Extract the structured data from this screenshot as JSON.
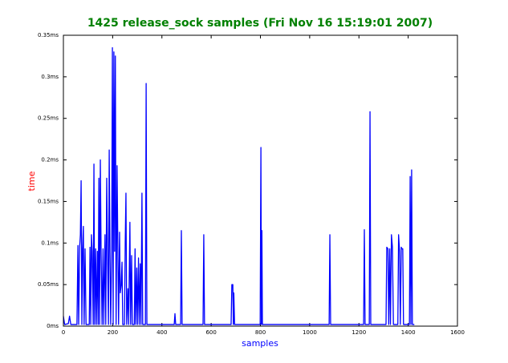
{
  "chart_data": {
    "type": "line",
    "title": "1425 release_sock samples (Fri Nov 16 15:19:01 2007)",
    "x_label": "samples",
    "y_label": "time",
    "xlim": [
      0,
      1600
    ],
    "ylim": [
      0,
      0.35
    ],
    "xticks": [
      0,
      200,
      400,
      600,
      800,
      1000,
      1200,
      1400,
      1600
    ],
    "yticks": [
      {
        "value": 0,
        "label": "0ms"
      },
      {
        "value": 0.05,
        "label": "0.05ms"
      },
      {
        "value": 0.1,
        "label": "0.1ms"
      },
      {
        "value": 0.15,
        "label": "0.15ms"
      },
      {
        "value": 0.2,
        "label": "0.2ms"
      },
      {
        "value": 0.25,
        "label": "0.25ms"
      },
      {
        "value": 0.3,
        "label": "0.3ms"
      },
      {
        "value": 0.35,
        "label": "0.35ms"
      }
    ],
    "grid": false,
    "series": [
      {
        "color": "#0000ff",
        "x": [
          0,
          5,
          20,
          25,
          30,
          55,
          59,
          62,
          66,
          69,
          72,
          75,
          78,
          81,
          84,
          88,
          92,
          105,
          108,
          111,
          114,
          117,
          121,
          124,
          127,
          131,
          134,
          138,
          141,
          144,
          147,
          150,
          153,
          157,
          161,
          164,
          169,
          172,
          176,
          179,
          183,
          186,
          189,
          192,
          196,
          199,
          202,
          205,
          208,
          211,
          214,
          218,
          221,
          224,
          228,
          231,
          235,
          238,
          241,
          248,
          251,
          254,
          257,
          262,
          265,
          270,
          273,
          277,
          280,
          288,
          291,
          294,
          298,
          301,
          305,
          308,
          312,
          315,
          319,
          322,
          333,
          336,
          339,
          450,
          453,
          456,
          476,
          479,
          482,
          567,
          570,
          573,
          681,
          684,
          688,
          690,
          692,
          695,
          799,
          802,
          804,
          806,
          808,
          1079,
          1082,
          1085,
          1219,
          1222,
          1225,
          1242,
          1245,
          1248,
          1310,
          1313,
          1318,
          1321,
          1325,
          1328,
          1332,
          1336,
          1340,
          1358,
          1361,
          1365,
          1368,
          1372,
          1375,
          1378,
          1381,
          1405,
          1408,
          1411,
          1414,
          1417,
          1425
        ],
        "values": [
          0.012,
          0.002,
          0.003,
          0.012,
          0.002,
          0.002,
          0.097,
          0.002,
          0.095,
          0.11,
          0.175,
          0.002,
          0.093,
          0.12,
          0.002,
          0.093,
          0.002,
          0.002,
          0.095,
          0.002,
          0.11,
          0.09,
          0.002,
          0.195,
          0.002,
          0.093,
          0.002,
          0.09,
          0.002,
          0.178,
          0.002,
          0.2,
          0.093,
          0.002,
          0.093,
          0.002,
          0.11,
          0.002,
          0.178,
          0.093,
          0.002,
          0.212,
          0.09,
          0.002,
          0.09,
          0.335,
          0.002,
          0.33,
          0.09,
          0.325,
          0.002,
          0.193,
          0.095,
          0.002,
          0.113,
          0.04,
          0.05,
          0.077,
          0.002,
          0.002,
          0.1,
          0.16,
          0.002,
          0.045,
          0.002,
          0.125,
          0.002,
          0.085,
          0.002,
          0.002,
          0.093,
          0.002,
          0.07,
          0.002,
          0.082,
          0.002,
          0.075,
          0.002,
          0.16,
          0.002,
          0.002,
          0.292,
          0.002,
          0.002,
          0.015,
          0.002,
          0.002,
          0.115,
          0.002,
          0.002,
          0.11,
          0.002,
          0.002,
          0.05,
          0.05,
          0.002,
          0.04,
          0.002,
          0.002,
          0.215,
          0.002,
          0.115,
          0.002,
          0.002,
          0.11,
          0.002,
          0.002,
          0.116,
          0.002,
          0.002,
          0.258,
          0.002,
          0.002,
          0.095,
          0.093,
          0.002,
          0.093,
          0.002,
          0.11,
          0.095,
          0.002,
          0.002,
          0.11,
          0.09,
          0.002,
          0.095,
          0.093,
          0.093,
          0.002,
          0.002,
          0.18,
          0.002,
          0.188,
          0.002,
          0.002
        ]
      }
    ]
  }
}
